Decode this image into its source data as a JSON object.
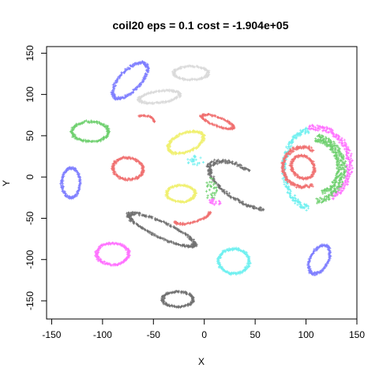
{
  "chart_data": {
    "type": "scatter",
    "title": "coil20 eps = 0.1 cost = -1.904e+05",
    "xlabel": "X",
    "ylabel": "Y",
    "xlim": [
      -155,
      150
    ],
    "ylim": [
      -172,
      158
    ],
    "xticks": [
      -150,
      -100,
      -50,
      0,
      50,
      100,
      150
    ],
    "yticks": [
      -150,
      -100,
      -50,
      0,
      50,
      100,
      150
    ],
    "marker": "+",
    "grid": false,
    "legend": "none",
    "clusters": [
      {
        "color": "#7F7FFF",
        "shape": "ring",
        "cx": -73,
        "cy": 117,
        "rx": 25,
        "ry": 11,
        "rot": 55
      },
      {
        "color": "#DADADA",
        "shape": "ring",
        "cx": -13,
        "cy": 126,
        "rx": 17,
        "ry": 8,
        "rot": 0
      },
      {
        "color": "#DADADA",
        "shape": "ring",
        "cx": -44,
        "cy": 97,
        "rx": 20,
        "ry": 7,
        "rot": 10
      },
      {
        "color": "#F07070",
        "shape": "arc",
        "cx": -57,
        "cy": 70,
        "rx": 8,
        "ry": 4,
        "rot": -20,
        "a0": 0,
        "a1": 180
      },
      {
        "color": "#F07070",
        "shape": "arc",
        "cx": 13,
        "cy": 67,
        "rx": 17,
        "ry": 5,
        "rot": -25,
        "a0": 0,
        "a1": 360
      },
      {
        "color": "#70D070",
        "shape": "ring",
        "cx": -112,
        "cy": 55,
        "rx": 18,
        "ry": 12,
        "rot": 0
      },
      {
        "color": "#F0F070",
        "shape": "ring",
        "cx": -18,
        "cy": 42,
        "rx": 19,
        "ry": 11,
        "rot": 30
      },
      {
        "color": "#70F0F0",
        "shape": "dots",
        "cx": -8,
        "cy": 20,
        "rx": 9,
        "ry": 6,
        "rot": 0
      },
      {
        "color": "#707070",
        "shape": "arc",
        "cx": 38,
        "cy": -10,
        "rx": 40,
        "ry": 18,
        "rot": -40,
        "a0": 100,
        "a1": 330
      },
      {
        "color": "#7F7FFF",
        "shape": "ring",
        "cx": -131,
        "cy": -7,
        "rx": 9,
        "ry": 18,
        "rot": 0
      },
      {
        "color": "#F07070",
        "shape": "ring",
        "cx": -75,
        "cy": 10,
        "rx": 15,
        "ry": 13,
        "rot": -20
      },
      {
        "color": "#F0F070",
        "shape": "ring",
        "cx": -23,
        "cy": -20,
        "rx": 14,
        "ry": 10,
        "rot": 0
      },
      {
        "color": "#70D070",
        "shape": "dots",
        "cx": 7,
        "cy": -15,
        "rx": 6,
        "ry": 14,
        "rot": 0
      },
      {
        "color": "#FF70FF",
        "shape": "dots",
        "cx": 10,
        "cy": -30,
        "rx": 8,
        "ry": 4,
        "rot": 0
      },
      {
        "color": "#F07070",
        "shape": "arc",
        "cx": -12,
        "cy": -48,
        "rx": 18,
        "ry": 7,
        "rot": 20,
        "a0": 180,
        "a1": 360
      },
      {
        "color": "#707070",
        "shape": "ring",
        "cx": -42,
        "cy": -64,
        "rx": 37,
        "ry": 9,
        "rot": -30
      },
      {
        "color": "#70F0F0",
        "shape": "ring",
        "cx": 29,
        "cy": -102,
        "rx": 15,
        "ry": 15,
        "rot": 0
      },
      {
        "color": "#FF70FF",
        "shape": "ring",
        "cx": -90,
        "cy": -93,
        "rx": 16,
        "ry": 13,
        "rot": 0
      },
      {
        "color": "#707070",
        "shape": "ring",
        "cx": -26,
        "cy": -148,
        "rx": 15,
        "ry": 9,
        "rot": 0
      },
      {
        "color": "#7F7FFF",
        "shape": "ring",
        "cx": 113,
        "cy": -100,
        "rx": 9,
        "ry": 18,
        "rot": -20
      },
      {
        "color": "#70F0F0",
        "shape": "arc",
        "cx": 105,
        "cy": 10,
        "rx": 27,
        "ry": 47,
        "rot": 0,
        "a0": 95,
        "a1": 265
      },
      {
        "color": "#FF70FF",
        "shape": "arc",
        "cx": 108,
        "cy": 15,
        "rx": 35,
        "ry": 45,
        "rot": 0,
        "a0": -60,
        "a1": 100
      },
      {
        "color": "#70D070",
        "shape": "arc",
        "cx": 105,
        "cy": 10,
        "rx": 32,
        "ry": 40,
        "rot": 0,
        "a0": -80,
        "a1": 80
      },
      {
        "color": "#70D070",
        "shape": "arc",
        "cx": 108,
        "cy": 12,
        "rx": 24,
        "ry": 33,
        "rot": 0,
        "a0": -70,
        "a1": 90
      },
      {
        "color": "#F07070",
        "shape": "ring",
        "cx": 97,
        "cy": 12,
        "rx": 11,
        "ry": 14,
        "rot": 20
      },
      {
        "color": "#F07070",
        "shape": "arc",
        "cx": 97,
        "cy": 12,
        "rx": 20,
        "ry": 24,
        "rot": 0,
        "a0": 60,
        "a1": 300
      }
    ]
  }
}
